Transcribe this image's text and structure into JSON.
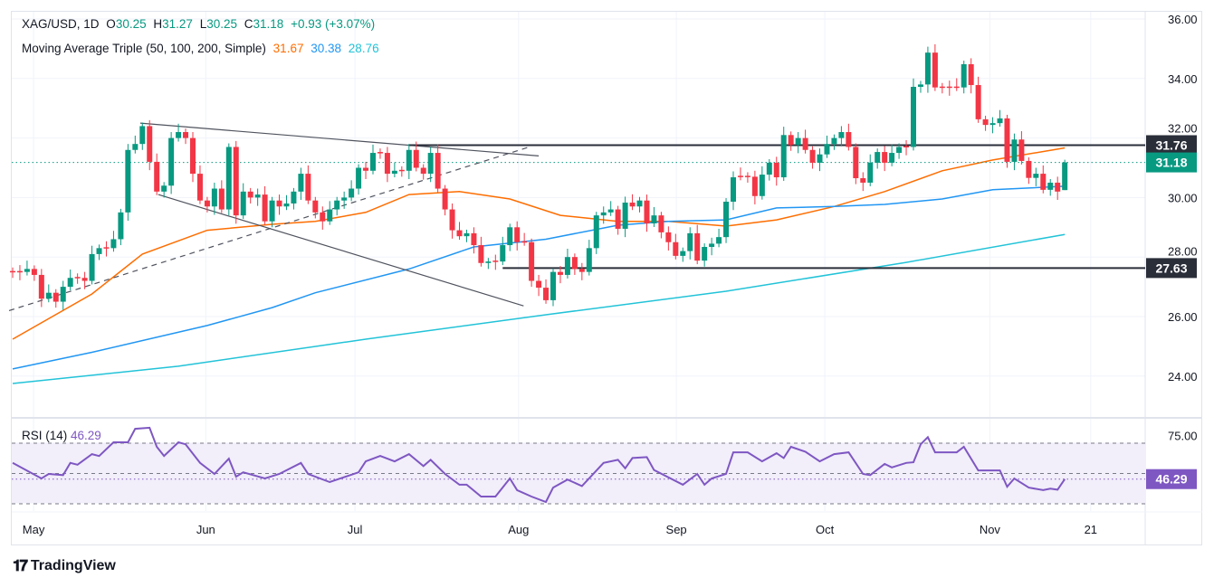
{
  "header": {
    "symbol": "XAG/USD, 1D",
    "o_label": "O",
    "o": "30.25",
    "h_label": "H",
    "h": "31.27",
    "l_label": "L",
    "l": "30.25",
    "c_label": "C",
    "c": "31.18",
    "change": "+0.93 (+3.07%)",
    "ma_label": "Moving Average Triple (50, 100, 200, Simple)",
    "ma50": "31.67",
    "ma100": "30.38",
    "ma200": "28.76"
  },
  "rsi_legend": {
    "label": "RSI (14)",
    "value": "46.29"
  },
  "brand": {
    "name": "TradingView"
  },
  "colors": {
    "up": "#089981",
    "down": "#f23645",
    "ma50": "#ff6d00",
    "ma100": "#2196f3",
    "ma200": "#22c3d8",
    "rsi": "#7e57c2",
    "level": "#2a2e39"
  },
  "chart_data": [
    {
      "type": "candlestick",
      "title": "XAG/USD, 1D",
      "ylim": [
        23,
        36.5
      ],
      "y_ticks": [
        "36.00",
        "34.00",
        "32.00",
        "30.00",
        "28.00",
        "26.00",
        "24.00"
      ],
      "y_tick_values": [
        36,
        34,
        32,
        30,
        28,
        26,
        24
      ],
      "x_ticks": [
        {
          "label": "May",
          "index": 2.9
        },
        {
          "label": "Jun",
          "index": 26.8
        },
        {
          "label": "Jul",
          "index": 47.5
        },
        {
          "label": "Aug",
          "index": 70.2
        },
        {
          "label": "Sep",
          "index": 92.1
        },
        {
          "label": "Oct",
          "index": 112.7
        },
        {
          "label": "Nov",
          "index": 135.6
        },
        {
          "label": "21",
          "index": 149.6
        }
      ],
      "close": [
        27.5,
        27.5,
        27.6,
        27.4,
        26.6,
        26.8,
        26.5,
        27.0,
        27.3,
        27.3,
        27.2,
        28.1,
        28.3,
        28.3,
        28.6,
        29.5,
        31.6,
        31.8,
        32.4,
        31.2,
        30.2,
        30.4,
        32.0,
        32.2,
        32.0,
        30.8,
        29.9,
        29.7,
        30.3,
        29.6,
        31.7,
        29.4,
        30.2,
        30.0,
        30.1,
        29.2,
        29.9,
        29.7,
        29.8,
        30.2,
        30.8,
        29.9,
        29.5,
        29.2,
        29.6,
        29.9,
        30.0,
        30.3,
        31.0,
        30.9,
        31.5,
        31.5,
        30.8,
        30.9,
        30.9,
        31.6,
        31.0,
        30.8,
        31.5,
        30.3,
        29.6,
        28.9,
        28.7,
        28.8,
        28.4,
        27.8,
        27.85,
        27.85,
        28.4,
        29.0,
        28.5,
        28.5,
        27.2,
        26.97,
        26.55,
        27.5,
        27.4,
        28.0,
        27.6,
        27.5,
        28.3,
        29.4,
        29.5,
        29.6,
        28.95,
        29.83,
        29.7,
        29.9,
        29.13,
        29.4,
        28.83,
        28.5,
        28.04,
        28.2,
        28.8,
        27.88,
        28.34,
        28.45,
        28.67,
        29.86,
        30.68,
        30.7,
        30.7,
        30.05,
        30.77,
        31.17,
        30.68,
        32.1,
        31.77,
        32.0,
        31.6,
        31.17,
        31.45,
        31.8,
        32.0,
        32.2,
        31.7,
        30.65,
        30.5,
        31.17,
        31.53,
        31.17,
        31.5,
        31.7,
        31.7,
        33.72,
        33.8,
        34.87,
        33.7,
        33.7,
        33.7,
        33.7,
        34.48,
        33.78,
        32.63,
        32.44,
        32.5,
        32.66,
        31.2,
        31.95,
        31.23,
        30.66,
        30.8,
        30.26,
        30.5,
        30.2,
        31.18
      ],
      "last_candle": {
        "open": 30.25,
        "high": 31.27,
        "low": 30.25,
        "close": 31.18
      },
      "moving_averages": [
        {
          "name": "SMA 50",
          "last": 31.67,
          "points": [
            [
              0,
              25.24
            ],
            [
              11,
              26.76
            ],
            [
              18,
              28.1
            ],
            [
              27,
              28.9
            ],
            [
              36,
              29.1
            ],
            [
              42,
              29.2
            ],
            [
              49,
              29.5
            ],
            [
              55,
              30.1
            ],
            [
              62,
              30.2
            ],
            [
              69,
              29.95
            ],
            [
              76,
              29.4
            ],
            [
              84,
              29.2
            ],
            [
              91,
              29.2
            ],
            [
              99,
              29.04
            ],
            [
              106,
              29.25
            ],
            [
              114,
              29.7
            ],
            [
              121,
              30.2
            ],
            [
              129,
              30.9
            ],
            [
              136,
              31.26
            ],
            [
              146,
              31.67
            ]
          ]
        },
        {
          "name": "SMA 100",
          "last": 30.38,
          "points": [
            [
              0,
              24.24
            ],
            [
              11,
              24.8
            ],
            [
              27,
              25.7
            ],
            [
              36,
              26.3
            ],
            [
              42,
              26.8
            ],
            [
              55,
              27.6
            ],
            [
              64,
              28.34
            ],
            [
              74,
              28.6
            ],
            [
              84,
              29.07
            ],
            [
              91,
              29.2
            ],
            [
              99,
              29.25
            ],
            [
              106,
              29.65
            ],
            [
              114,
              29.7
            ],
            [
              121,
              29.77
            ],
            [
              129,
              29.95
            ],
            [
              136,
              30.26
            ],
            [
              146,
              30.38
            ]
          ]
        },
        {
          "name": "SMA 200",
          "last": 28.76,
          "points": [
            [
              0,
              23.75
            ],
            [
              23,
              24.33
            ],
            [
              49,
              25.24
            ],
            [
              74,
              26.06
            ],
            [
              99,
              26.85
            ],
            [
              124,
              27.82
            ],
            [
              146,
              28.76
            ]
          ]
        }
      ],
      "trendlines": [
        {
          "style": "solid",
          "from": [
            17.7,
            32.5
          ],
          "to": [
            73,
            31.4
          ]
        },
        {
          "style": "solid",
          "from": [
            20.2,
            30.1
          ],
          "to": [
            70.9,
            26.36
          ]
        },
        {
          "style": "dashed",
          "from": [
            -0.5,
            26.2
          ],
          "to": [
            71.7,
            31.7
          ]
        }
      ],
      "horizontal_levels": [
        {
          "value": 31.76,
          "label": "31.76",
          "from_index": 55
        },
        {
          "value": 27.63,
          "label": "27.63",
          "from_index": 68
        }
      ],
      "last_price": {
        "value": 31.18,
        "label": "31.18"
      }
    },
    {
      "type": "line",
      "title": "RSI (14)",
      "ylim": [
        20,
        80
      ],
      "y_ticks": [
        "75.00"
      ],
      "bands": [
        70,
        50,
        30
      ],
      "last": {
        "value": 46.29,
        "label": "46.29"
      },
      "points": [
        [
          0,
          57
        ],
        [
          4,
          46.7
        ],
        [
          5,
          49.7
        ],
        [
          7,
          48.9
        ],
        [
          8,
          57
        ],
        [
          9,
          55.8
        ],
        [
          11,
          62.8
        ],
        [
          12,
          61.5
        ],
        [
          14,
          70.6
        ],
        [
          16,
          70.6
        ],
        [
          17,
          79.5
        ],
        [
          19,
          80.2
        ],
        [
          20,
          67.6
        ],
        [
          21,
          61.6
        ],
        [
          23,
          70.6
        ],
        [
          24,
          69.3
        ],
        [
          26,
          57
        ],
        [
          28,
          49.7
        ],
        [
          30,
          59.8
        ],
        [
          31,
          47.9
        ],
        [
          32,
          50.8
        ],
        [
          35,
          46.7
        ],
        [
          37,
          49.7
        ],
        [
          40,
          57
        ],
        [
          41,
          49.7
        ],
        [
          44,
          44.3
        ],
        [
          48,
          50.8
        ],
        [
          49,
          58
        ],
        [
          51,
          61.6
        ],
        [
          53,
          58
        ],
        [
          55,
          62.8
        ],
        [
          57,
          54.9
        ],
        [
          58,
          59
        ],
        [
          60,
          49.7
        ],
        [
          62,
          42.6
        ],
        [
          63,
          42.6
        ],
        [
          65,
          34.8
        ],
        [
          67,
          34.8
        ],
        [
          69,
          46.7
        ],
        [
          70,
          39
        ],
        [
          72,
          34.8
        ],
        [
          74,
          31.2
        ],
        [
          75,
          40.7
        ],
        [
          77,
          46
        ],
        [
          79,
          41.7
        ],
        [
          82,
          57
        ],
        [
          84,
          59
        ],
        [
          85,
          53.4
        ],
        [
          86,
          60.2
        ],
        [
          88,
          60.8
        ],
        [
          89,
          52.3
        ],
        [
          93,
          42.6
        ],
        [
          95,
          49.7
        ],
        [
          96,
          42.6
        ],
        [
          97,
          46.7
        ],
        [
          99,
          49.7
        ],
        [
          100,
          64
        ],
        [
          102,
          64
        ],
        [
          104,
          58
        ],
        [
          106,
          63.4
        ],
        [
          107,
          60.2
        ],
        [
          108,
          67.6
        ],
        [
          110,
          64.4
        ],
        [
          112,
          58
        ],
        [
          114,
          62.8
        ],
        [
          116,
          64
        ],
        [
          118,
          49.7
        ],
        [
          119,
          48.9
        ],
        [
          121,
          56.3
        ],
        [
          122,
          54
        ],
        [
          124,
          57
        ],
        [
          125,
          57.4
        ],
        [
          126,
          69.3
        ],
        [
          127,
          74
        ],
        [
          128,
          64
        ],
        [
          131,
          64
        ],
        [
          132,
          67.6
        ],
        [
          134,
          52
        ],
        [
          137,
          52
        ],
        [
          138,
          41.2
        ],
        [
          139,
          46.7
        ],
        [
          141,
          40.7
        ],
        [
          143,
          39
        ],
        [
          144,
          40
        ],
        [
          145,
          39.3
        ],
        [
          146,
          46.29
        ]
      ]
    }
  ]
}
